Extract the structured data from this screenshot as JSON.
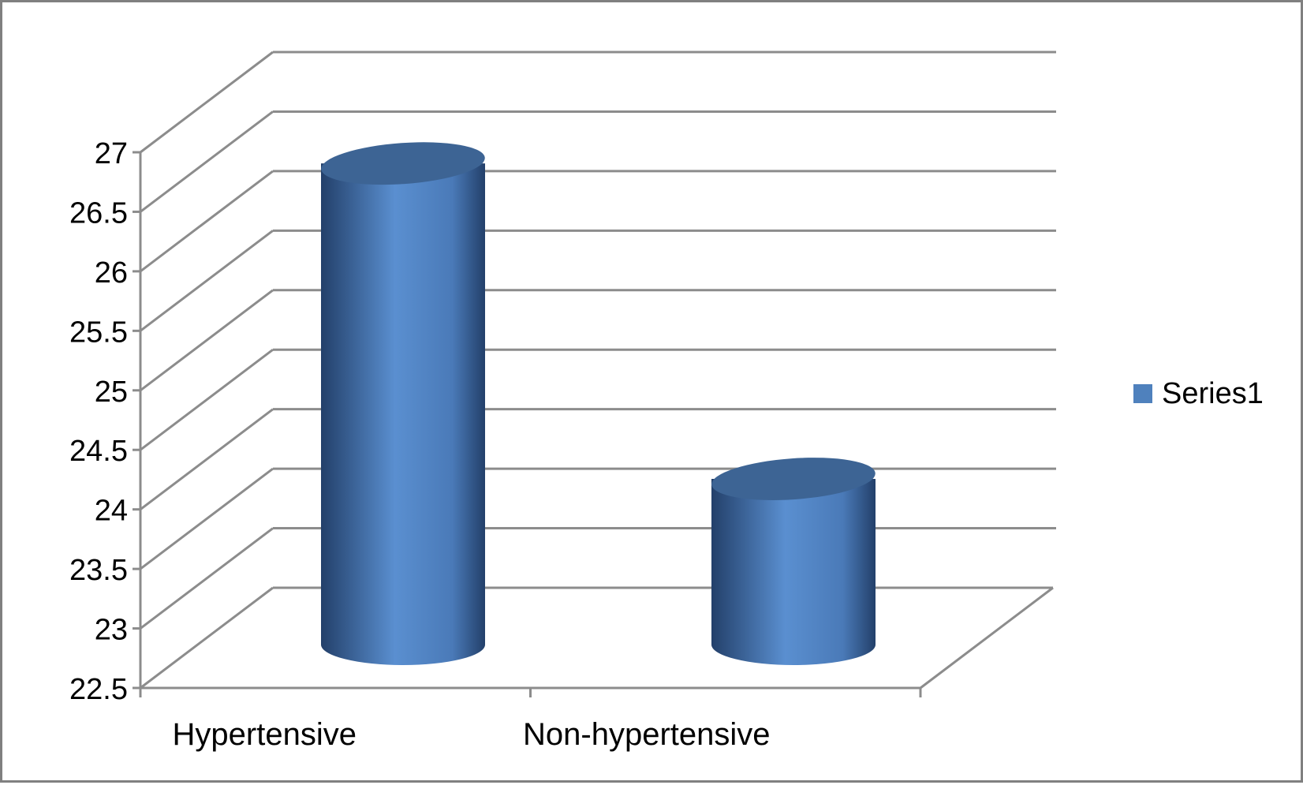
{
  "chart_data": {
    "type": "bar",
    "style": "3d-cylinder",
    "categories": [
      "Hypertensive",
      "Non-hypertensive"
    ],
    "series": [
      {
        "name": "Series1",
        "values": [
          26.8,
          24.15
        ]
      }
    ],
    "title": "",
    "xlabel": "",
    "ylabel": "",
    "ylim": [
      22.5,
      27
    ],
    "ytick_step": 0.5,
    "ytick_labels": [
      "22.5",
      "23",
      "23.5",
      "24",
      "24.5",
      "25",
      "25.5",
      "26",
      "26.5",
      "27"
    ],
    "grid": true,
    "legend": {
      "position": "right",
      "entries": [
        "Series1"
      ]
    },
    "colors": {
      "bar_light": "#5a8fd0",
      "bar_dark": "#23406a",
      "bar_top": "#3d6494",
      "grid": "#8c8c8c",
      "legend_swatch": "#4f81bd"
    }
  }
}
